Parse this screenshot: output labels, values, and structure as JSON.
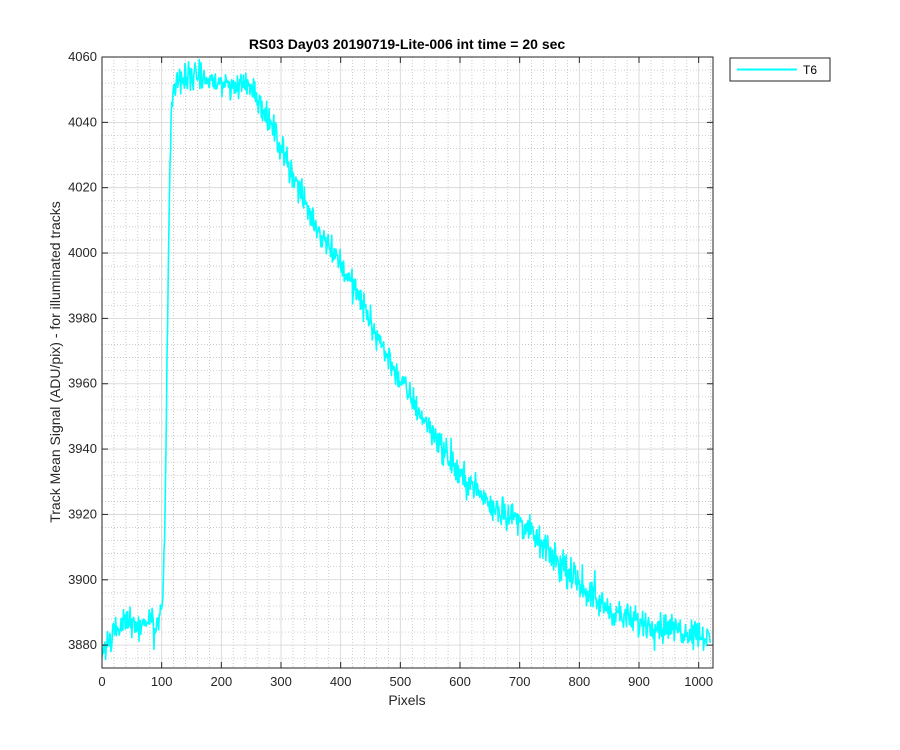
{
  "chart_data": {
    "type": "line",
    "title": "RS03 Day03 20190719-Lite-006 int time = 20 sec",
    "xlabel": "Pixels",
    "ylabel": "Track Mean Signal (ADU/pix) - for illuminated tracks",
    "xlim": [
      0,
      1024
    ],
    "ylim": [
      3873,
      4060
    ],
    "xticks": [
      0,
      100,
      200,
      300,
      400,
      500,
      600,
      700,
      800,
      900,
      1000
    ],
    "yticks": [
      3880,
      3900,
      3920,
      3940,
      3960,
      3980,
      4000,
      4020,
      4040,
      4060
    ],
    "grid": true,
    "minor_grid": true,
    "legend_position": "outside-top-right",
    "noise_amplitude": 4,
    "series": [
      {
        "name": "T6",
        "color": "#00ffff",
        "x": [
          0,
          5,
          15,
          30,
          45,
          60,
          75,
          90,
          98,
          102,
          105,
          108,
          111,
          114,
          118,
          125,
          135,
          150,
          175,
          200,
          225,
          250,
          260,
          280,
          300,
          320,
          340,
          360,
          380,
          400,
          420,
          440,
          460,
          480,
          500,
          520,
          540,
          560,
          580,
          600,
          620,
          640,
          660,
          680,
          700,
          720,
          740,
          760,
          780,
          800,
          820,
          840,
          860,
          880,
          900,
          930,
          960,
          990,
          1010,
          1020
        ],
        "y": [
          3878,
          3880,
          3883,
          3885,
          3887,
          3886,
          3887,
          3887,
          3888,
          3895,
          3915,
          3950,
          3995,
          4030,
          4048,
          4052,
          4053,
          4054,
          4053,
          4052,
          4051,
          4052,
          4048,
          4040,
          4033,
          4024,
          4015,
          4008,
          4003,
          3997,
          3990,
          3983,
          3975,
          3968,
          3961,
          3955,
          3949,
          3944,
          3937,
          3932,
          3929,
          3925,
          3922,
          3920,
          3918,
          3914,
          3910,
          3906,
          3902,
          3899,
          3895,
          3892,
          3890,
          3888,
          3887,
          3886,
          3885,
          3884,
          3883,
          3880
        ]
      }
    ]
  }
}
